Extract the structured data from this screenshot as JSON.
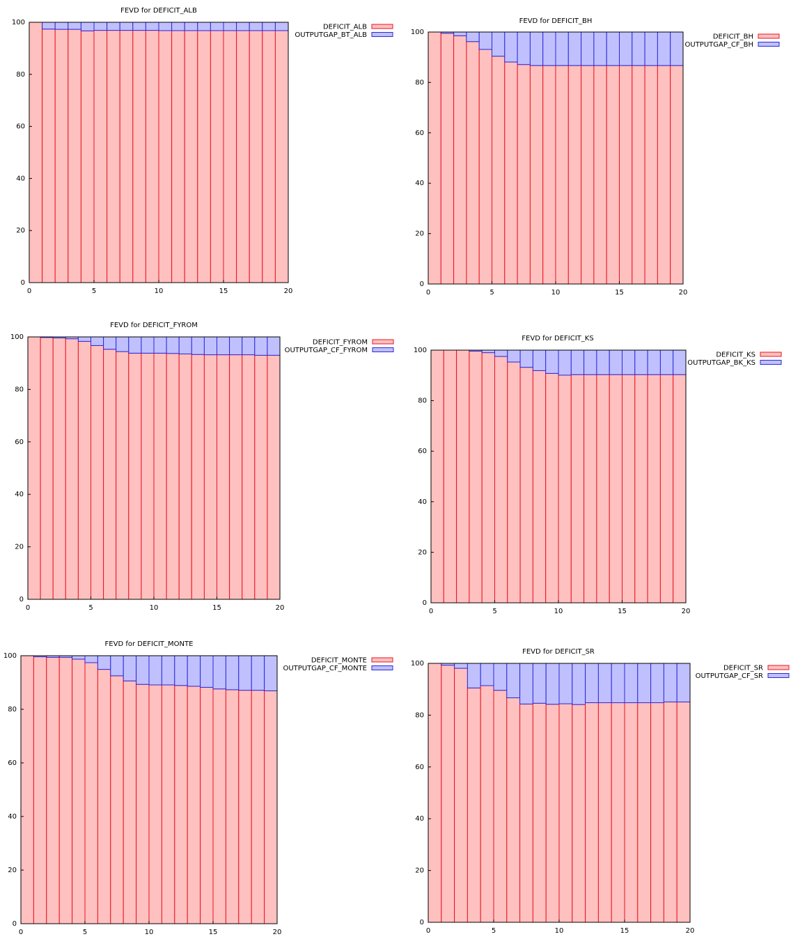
{
  "colors": {
    "deficit_fill": "#ffc0c0",
    "deficit_stroke": "#e8141e",
    "gap_fill": "#c0c0ff",
    "gap_stroke": "#2a2ad8"
  },
  "chart_data": [
    {
      "type": "bar",
      "stacked": true,
      "title": "FEVD for DEFICIT_ALB",
      "xlabel": "",
      "ylabel": "",
      "xlim": [
        0,
        20
      ],
      "ylim": [
        0,
        100
      ],
      "xticks": [
        "0",
        "5",
        "10",
        "15",
        "20"
      ],
      "yticks": [
        "0",
        "20",
        "40",
        "60",
        "80",
        "100"
      ],
      "legend_position": "top-right",
      "x": [
        1,
        2,
        3,
        4,
        5,
        6,
        7,
        8,
        9,
        10,
        11,
        12,
        13,
        14,
        15,
        16,
        17,
        18,
        19,
        20
      ],
      "series": [
        {
          "name": "DEFICIT_ALB",
          "values": [
            100,
            97.4,
            97.3,
            97.3,
            96.7,
            96.9,
            96.9,
            96.9,
            96.9,
            96.9,
            96.8,
            96.8,
            96.8,
            96.8,
            96.8,
            96.8,
            96.8,
            96.8,
            96.8,
            96.8
          ]
        },
        {
          "name": "OUTPUTGAP_BT_ALB",
          "values": [
            0,
            2.6,
            2.7,
            2.7,
            3.3,
            3.1,
            3.1,
            3.1,
            3.1,
            3.1,
            3.2,
            3.2,
            3.2,
            3.2,
            3.2,
            3.2,
            3.2,
            3.2,
            3.2,
            3.2
          ]
        }
      ]
    },
    {
      "type": "bar",
      "stacked": true,
      "title": "FEVD for DEFICIT_BH",
      "xlabel": "",
      "ylabel": "",
      "xlim": [
        0,
        20
      ],
      "ylim": [
        0,
        100
      ],
      "xticks": [
        "0",
        "5",
        "10",
        "15",
        "20"
      ],
      "yticks": [
        "0",
        "20",
        "40",
        "60",
        "80",
        "100"
      ],
      "legend_position": "top-right",
      "x": [
        1,
        2,
        3,
        4,
        5,
        6,
        7,
        8,
        9,
        10,
        11,
        12,
        13,
        14,
        15,
        16,
        17,
        18,
        19,
        20
      ],
      "series": [
        {
          "name": "DEFICIT_BH",
          "values": [
            100,
            99.5,
            98.5,
            96.2,
            93.1,
            90.4,
            88.1,
            87.1,
            86.7,
            86.7,
            86.7,
            86.7,
            86.7,
            86.7,
            86.7,
            86.7,
            86.7,
            86.7,
            86.7,
            86.7
          ]
        },
        {
          "name": "OUTPUTGAP_CF_BH",
          "values": [
            0,
            0.5,
            1.5,
            3.8,
            6.9,
            9.6,
            11.9,
            12.9,
            13.3,
            13.3,
            13.3,
            13.3,
            13.3,
            13.3,
            13.3,
            13.3,
            13.3,
            13.3,
            13.3,
            13.3
          ]
        }
      ]
    },
    {
      "type": "bar",
      "stacked": true,
      "title": "FEVD for DEFICIT_FYROM",
      "xlabel": "",
      "ylabel": "",
      "xlim": [
        0,
        20
      ],
      "ylim": [
        0,
        100
      ],
      "xticks": [
        "0",
        "5",
        "10",
        "15",
        "20"
      ],
      "yticks": [
        "0",
        "20",
        "40",
        "60",
        "80",
        "100"
      ],
      "legend_position": "top-right",
      "x": [
        1,
        2,
        3,
        4,
        5,
        6,
        7,
        8,
        9,
        10,
        11,
        12,
        13,
        14,
        15,
        16,
        17,
        18,
        19,
        20
      ],
      "series": [
        {
          "name": "DEFICIT_FYROM",
          "values": [
            100,
            99.8,
            99.6,
            99.3,
            98.3,
            96.7,
            95.3,
            94.4,
            93.8,
            93.8,
            93.8,
            93.7,
            93.5,
            93.3,
            93.2,
            93.2,
            93.2,
            93.2,
            93.0,
            93.0
          ]
        },
        {
          "name": "OUTPUTGAP_CF_FYROM",
          "values": [
            0,
            0.2,
            0.4,
            0.7,
            1.7,
            3.3,
            4.7,
            5.6,
            6.2,
            6.2,
            6.2,
            6.3,
            6.5,
            6.7,
            6.8,
            6.8,
            6.8,
            6.8,
            7.0,
            7.0
          ]
        }
      ]
    },
    {
      "type": "bar",
      "stacked": true,
      "title": "FEVD for DEFICIT_KS",
      "xlabel": "",
      "ylabel": "",
      "xlim": [
        0,
        20
      ],
      "ylim": [
        0,
        100
      ],
      "xticks": [
        "0",
        "5",
        "10",
        "15",
        "20"
      ],
      "yticks": [
        "0",
        "20",
        "40",
        "60",
        "80",
        "100"
      ],
      "legend_position": "top-right",
      "x": [
        1,
        2,
        3,
        4,
        5,
        6,
        7,
        8,
        9,
        10,
        11,
        12,
        13,
        14,
        15,
        16,
        17,
        18,
        19,
        20
      ],
      "series": [
        {
          "name": "DEFICIT_KS",
          "values": [
            100,
            100,
            100,
            99.6,
            99.0,
            97.5,
            95.3,
            93.2,
            91.9,
            90.8,
            90.1,
            90.3,
            90.3,
            90.3,
            90.3,
            90.3,
            90.3,
            90.3,
            90.3,
            90.3
          ]
        },
        {
          "name": "OUTPUTGAP_BK_KS",
          "values": [
            0,
            0,
            0,
            0.4,
            1.0,
            2.5,
            4.7,
            6.8,
            8.1,
            9.2,
            9.9,
            9.7,
            9.7,
            9.7,
            9.7,
            9.7,
            9.7,
            9.7,
            9.7,
            9.7
          ]
        }
      ]
    },
    {
      "type": "bar",
      "stacked": true,
      "title": "FEVD for DEFICIT_MONTE",
      "xlabel": "",
      "ylabel": "",
      "xlim": [
        0,
        20
      ],
      "ylim": [
        0,
        100
      ],
      "xticks": [
        "0",
        "5",
        "10",
        "15",
        "20"
      ],
      "yticks": [
        "0",
        "20",
        "40",
        "60",
        "80",
        "100"
      ],
      "legend_position": "top-right",
      "x": [
        1,
        2,
        3,
        4,
        5,
        6,
        7,
        8,
        9,
        10,
        11,
        12,
        13,
        14,
        15,
        16,
        17,
        18,
        19,
        20
      ],
      "series": [
        {
          "name": "DEFICIT_MONTE",
          "values": [
            100,
            99.6,
            99.4,
            99.4,
            98.7,
            97.4,
            94.9,
            92.5,
            90.6,
            89.3,
            89.1,
            89.1,
            88.9,
            88.6,
            88.2,
            87.6,
            87.3,
            87.1,
            87.1,
            86.9
          ]
        },
        {
          "name": "OUTPUTGAP_CF_MONTE",
          "values": [
            0,
            0.4,
            0.6,
            0.6,
            1.3,
            2.6,
            5.1,
            7.5,
            9.4,
            10.7,
            10.9,
            10.9,
            11.1,
            11.4,
            11.8,
            12.4,
            12.7,
            12.9,
            12.9,
            13.1
          ]
        }
      ]
    },
    {
      "type": "bar",
      "stacked": true,
      "title": "FEVD for DEFICIT_SR",
      "xlabel": "",
      "ylabel": "",
      "xlim": [
        0,
        20
      ],
      "ylim": [
        0,
        100
      ],
      "xticks": [
        "0",
        "5",
        "10",
        "15",
        "20"
      ],
      "yticks": [
        "0",
        "20",
        "40",
        "60",
        "80",
        "100"
      ],
      "legend_position": "top-right",
      "x": [
        1,
        2,
        3,
        4,
        5,
        6,
        7,
        8,
        9,
        10,
        11,
        12,
        13,
        14,
        15,
        16,
        17,
        18,
        19,
        20
      ],
      "series": [
        {
          "name": "DEFICIT_SR",
          "values": [
            100,
            99.3,
            98.1,
            90.5,
            91.4,
            89.6,
            86.7,
            84.3,
            84.6,
            84.2,
            84.4,
            84.1,
            84.8,
            84.8,
            84.8,
            84.8,
            84.8,
            84.8,
            85.1,
            85.1
          ]
        },
        {
          "name": "OUTPUTGAP_CF_SR",
          "values": [
            0,
            0.7,
            1.9,
            9.5,
            8.6,
            10.4,
            13.3,
            15.7,
            15.4,
            15.8,
            15.6,
            15.9,
            15.2,
            15.2,
            15.2,
            15.2,
            15.2,
            15.2,
            14.9,
            14.9
          ]
        }
      ]
    }
  ]
}
